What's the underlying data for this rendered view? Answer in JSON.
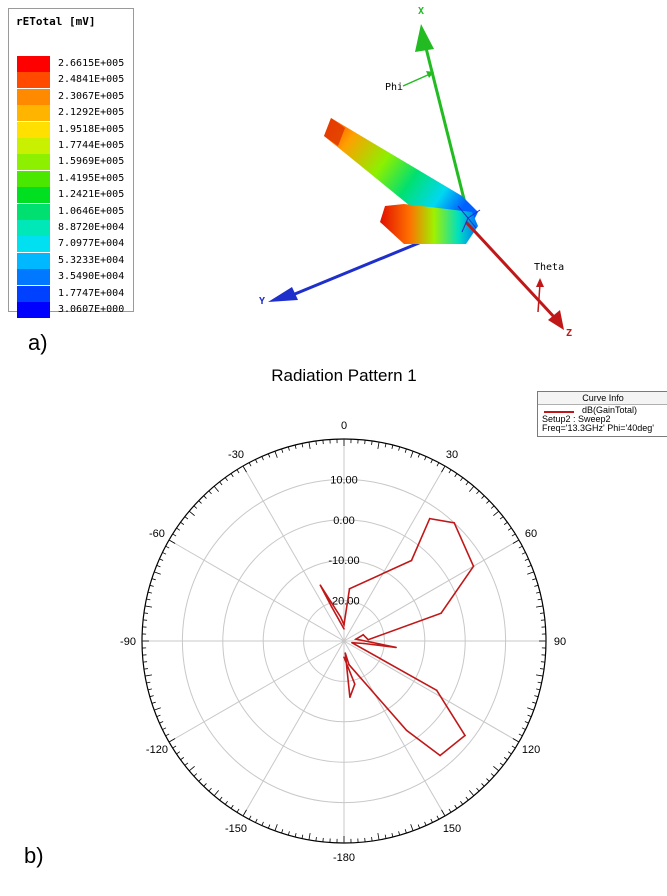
{
  "panel_a": {
    "label": "a)",
    "legend": {
      "title": "rETotal [mV]",
      "entries": [
        {
          "value": "2.6615E+005",
          "color": "#ff0000"
        },
        {
          "value": "2.4841E+005",
          "color": "#ff4a00"
        },
        {
          "value": "2.3067E+005",
          "color": "#ff8a00"
        },
        {
          "value": "2.1292E+005",
          "color": "#ffb400"
        },
        {
          "value": "1.9518E+005",
          "color": "#ffe000"
        },
        {
          "value": "1.7744E+005",
          "color": "#c8f000"
        },
        {
          "value": "1.5969E+005",
          "color": "#8cf000"
        },
        {
          "value": "1.4195E+005",
          "color": "#4ae800"
        },
        {
          "value": "1.2421E+005",
          "color": "#00e020"
        },
        {
          "value": "1.0646E+005",
          "color": "#00e070"
        },
        {
          "value": "8.8720E+004",
          "color": "#00e8b8"
        },
        {
          "value": "7.0977E+004",
          "color": "#00e0f0"
        },
        {
          "value": "5.3233E+004",
          "color": "#00b8ff"
        },
        {
          "value": "3.5490E+004",
          "color": "#0078ff"
        },
        {
          "value": "1.7747E+004",
          "color": "#0040ff"
        },
        {
          "value": "3.0607E+000",
          "color": "#0000ff"
        }
      ]
    },
    "axes": {
      "x": "X",
      "y": "Y",
      "z": "Z",
      "phi": "Phi",
      "theta": "Theta"
    },
    "colors": {
      "x_axis": "#22bb22",
      "y_axis": "#1f2fcc",
      "z_axis": "#c01818"
    }
  },
  "panel_b": {
    "label": "b)",
    "curve_info": {
      "title": "Curve Info",
      "series": "dB(GainTotal)",
      "setup": "Setup2 : Sweep2",
      "freq": "Freq='13.3GHz' Phi='40deg'"
    }
  },
  "chart_data": {
    "type": "polar",
    "title": "Radiation Pattern 1",
    "radial_axis": {
      "min": -30,
      "max": 20,
      "ticks": [
        -20,
        -10,
        0,
        10
      ],
      "tick_labels": [
        "-20.00",
        "-10.00",
        "0.00",
        "10.00"
      ]
    },
    "angular_ticks": [
      0,
      30,
      60,
      90,
      120,
      150,
      180,
      -150,
      -120,
      -90,
      -60,
      -30
    ],
    "angular_tick_labels": [
      "0",
      "30",
      "60",
      "90",
      "120",
      "150",
      "-180",
      "-150",
      "-120",
      "-90",
      "-60",
      "-30"
    ],
    "grid": true,
    "legend_placement": "top-right",
    "series": [
      {
        "name": "dB(GainTotal)",
        "color": "#c01818",
        "points": [
          {
            "theta": 0,
            "r": -27
          },
          {
            "theta": -20,
            "r": -21
          },
          {
            "theta": -23,
            "r": -15
          },
          {
            "theta": -8,
            "r": -24
          },
          {
            "theta": 0,
            "r": -26
          },
          {
            "theta": 6,
            "r": -17
          },
          {
            "theta": 40,
            "r": -4
          },
          {
            "theta": 35,
            "r": 7
          },
          {
            "theta": 43,
            "r": 10
          },
          {
            "theta": 60,
            "r": 7
          },
          {
            "theta": 74,
            "r": -5
          },
          {
            "theta": 87,
            "r": -24
          },
          {
            "theta": 72,
            "r": -25
          },
          {
            "theta": 81,
            "r": -27
          },
          {
            "theta": 97,
            "r": -17
          },
          {
            "theta": 97,
            "r": -25
          },
          {
            "theta": 102,
            "r": -28
          },
          {
            "theta": 118,
            "r": -4
          },
          {
            "theta": 128,
            "r": 8
          },
          {
            "theta": 140,
            "r": 7
          },
          {
            "theta": 145,
            "r": -3
          },
          {
            "theta": 168,
            "r": -24
          },
          {
            "theta": 174,
            "r": -27
          },
          {
            "theta": 174,
            "r": -16
          },
          {
            "theta": 166,
            "r": -19
          },
          {
            "theta": 180,
            "r": -26
          }
        ]
      }
    ]
  }
}
